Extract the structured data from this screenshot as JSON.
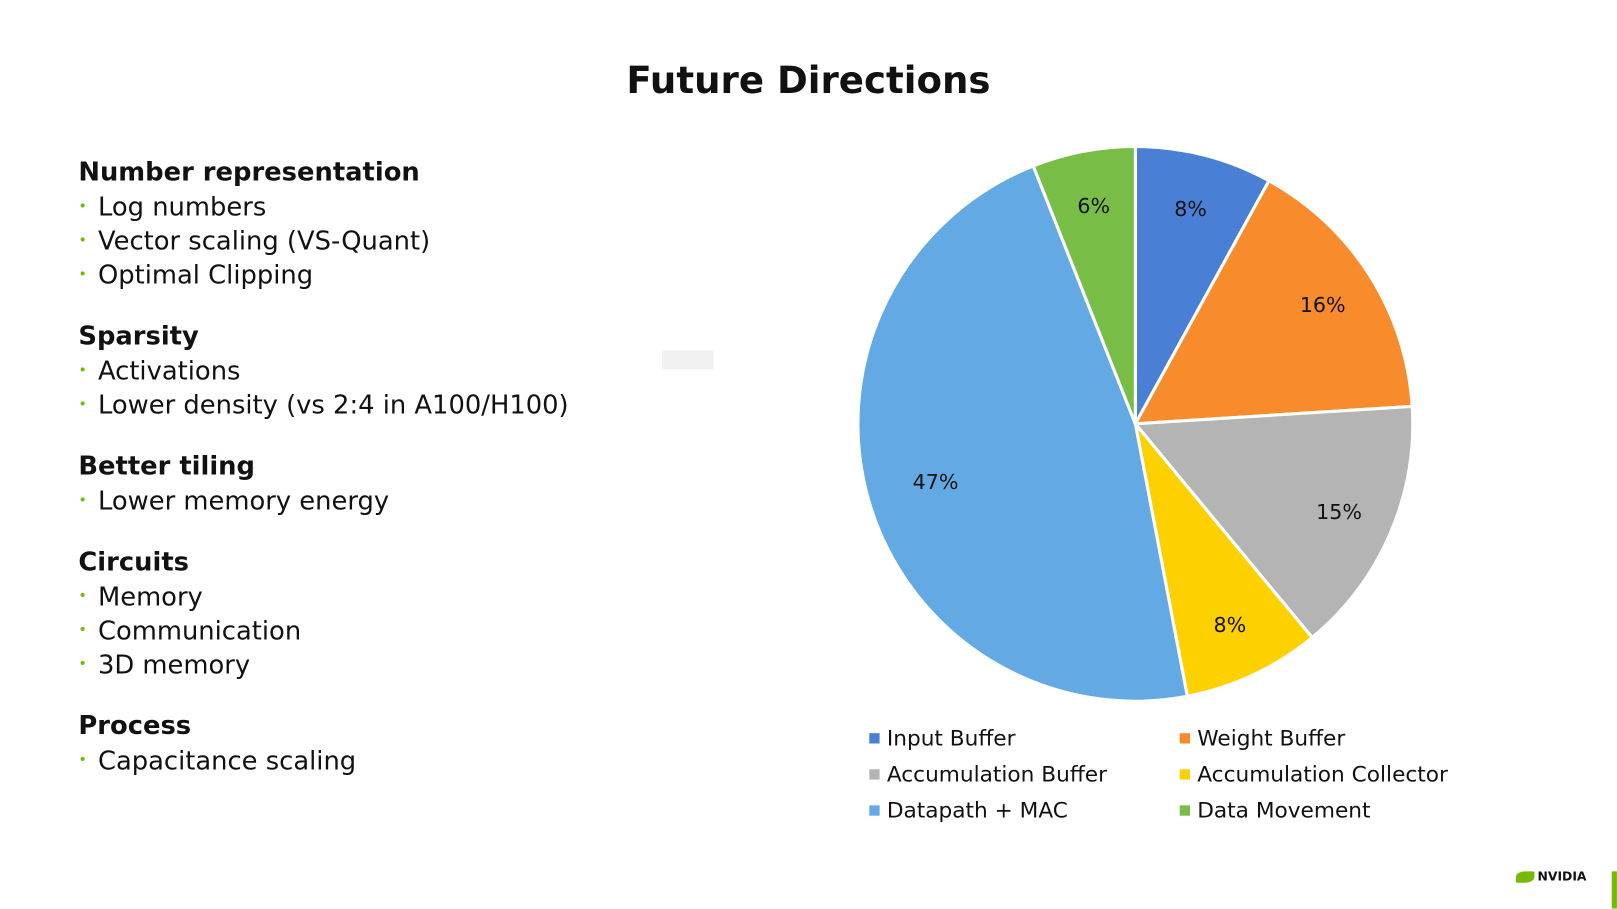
{
  "title": "Future Directions",
  "sections": [
    {
      "heading": "Number representation",
      "items": [
        "Log numbers",
        "Vector scaling (VS-Quant)",
        "Optimal Clipping"
      ]
    },
    {
      "heading": "Sparsity",
      "items": [
        "Activations",
        "Lower density (vs 2:4 in A100/H100)"
      ]
    },
    {
      "heading": "Better tiling",
      "items": [
        "Lower memory energy"
      ]
    },
    {
      "heading": "Circuits",
      "items": [
        "Memory",
        "Communication",
        "3D memory"
      ]
    },
    {
      "heading": "Process",
      "items": [
        "Capacitance scaling"
      ]
    }
  ],
  "brand": "NVIDIA",
  "chart_data": {
    "type": "pie",
    "title": "",
    "start": "12 o'clock, clockwise",
    "legend_position": "bottom",
    "categories": [
      "Input Buffer",
      "Weight Buffer",
      "Accumulation Buffer",
      "Accumulation Collector",
      "Datapath + MAC",
      "Data Movement"
    ],
    "values": [
      8,
      16,
      15,
      8,
      47,
      6
    ],
    "labels": [
      "8%",
      "16%",
      "15%",
      "8%",
      "47%",
      "6%"
    ],
    "colors": [
      "#4a7fd6",
      "#f88c2c",
      "#b4b4b4",
      "#fdd000",
      "#63aae4",
      "#78bd45"
    ]
  }
}
